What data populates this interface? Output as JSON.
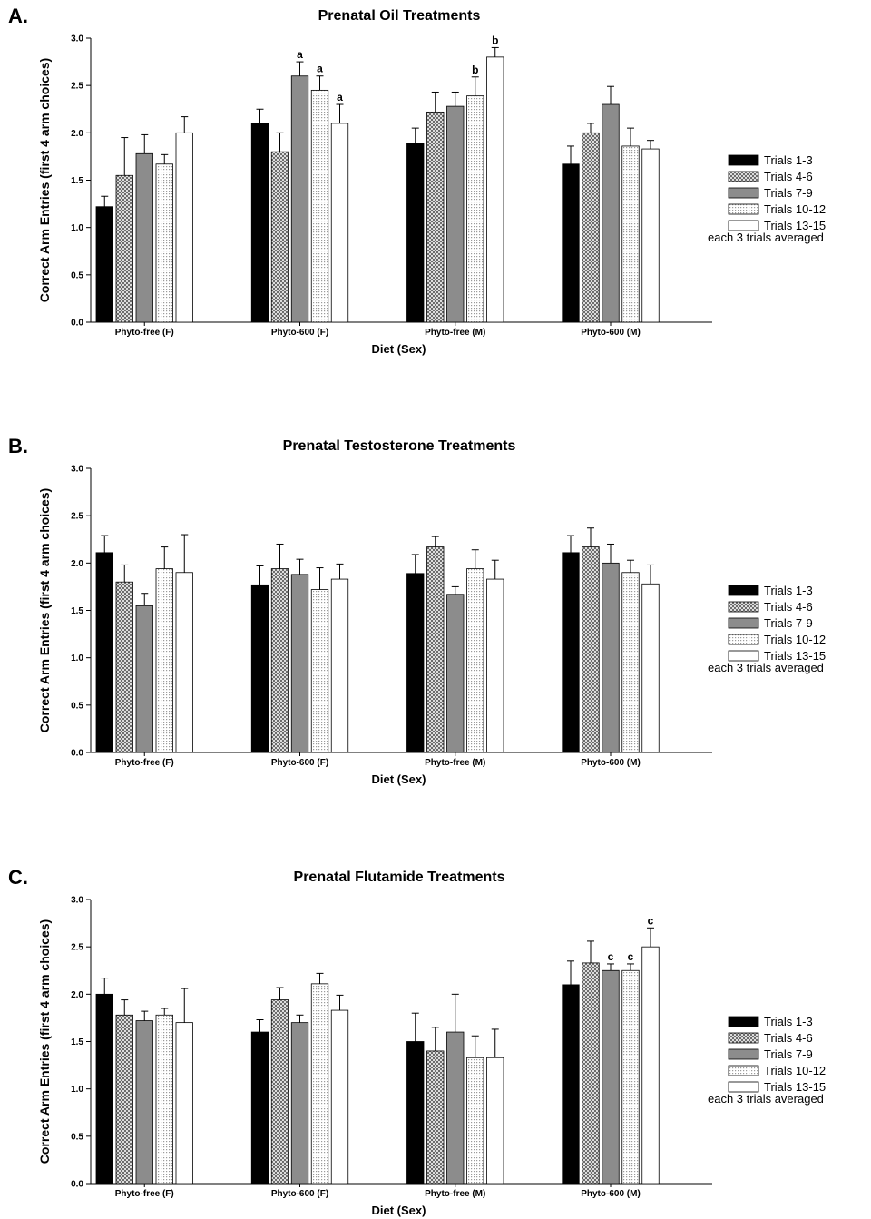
{
  "chart_data": [
    {
      "type": "bar",
      "panel_letter": "A.",
      "title": "Prenatal Oil Treatments",
      "xlabel": "Diet (Sex)",
      "ylabel": "Correct Arm Entries (first 4 arm choices)",
      "ylim": [
        0,
        3.0
      ],
      "yticks": [
        "0.0",
        "0.5",
        "1.0",
        "1.5",
        "2.0",
        "2.5",
        "3.0"
      ],
      "categories": [
        "Phyto-free (F)",
        "Phyto-600 (F)",
        "Phyto-free (M)",
        "Phyto-600 (M)"
      ],
      "grid": false,
      "legend_position": "right",
      "legend_note": "each 3 trials averaged",
      "series": [
        {
          "name": "Trials 1-3",
          "fill": "solid-black",
          "values": [
            1.22,
            2.1,
            1.89,
            1.67
          ],
          "errors": [
            0.11,
            0.15,
            0.16,
            0.19
          ],
          "annotations": [
            "",
            "",
            "",
            ""
          ]
        },
        {
          "name": "Trials 4-6",
          "fill": "crosshatch",
          "values": [
            1.55,
            1.8,
            2.22,
            2.0
          ],
          "errors": [
            0.4,
            0.2,
            0.21,
            0.1
          ],
          "annotations": [
            "",
            "",
            "",
            ""
          ]
        },
        {
          "name": "Trials 7-9",
          "fill": "solid-gray",
          "values": [
            1.78,
            2.6,
            2.28,
            2.3
          ],
          "errors": [
            0.2,
            0.15,
            0.15,
            0.19
          ],
          "annotations": [
            "",
            "a",
            "",
            ""
          ]
        },
        {
          "name": "Trials 10-12",
          "fill": "light-dots",
          "values": [
            1.67,
            2.45,
            2.39,
            1.86
          ],
          "errors": [
            0.1,
            0.15,
            0.2,
            0.19
          ],
          "annotations": [
            "",
            "a",
            "b",
            ""
          ]
        },
        {
          "name": "Trials 13-15",
          "fill": "white",
          "values": [
            2.0,
            2.1,
            2.8,
            1.83
          ],
          "errors": [
            0.17,
            0.2,
            0.1,
            0.09
          ],
          "annotations": [
            "",
            "a",
            "b",
            ""
          ]
        }
      ]
    },
    {
      "type": "bar",
      "panel_letter": "B.",
      "title": "Prenatal Testosterone Treatments",
      "xlabel": "Diet (Sex)",
      "ylabel": "Correct Arm Entries (first 4 arm choices)",
      "ylim": [
        0,
        3.0
      ],
      "yticks": [
        "0.0",
        "0.5",
        "1.0",
        "1.5",
        "2.0",
        "2.5",
        "3.0"
      ],
      "categories": [
        "Phyto-free (F)",
        "Phyto-600 (F)",
        "Phyto-free (M)",
        "Phyto-600 (M)"
      ],
      "grid": false,
      "legend_position": "right",
      "legend_note": "each 3 trials averaged",
      "series": [
        {
          "name": "Trials 1-3",
          "fill": "solid-black",
          "values": [
            2.11,
            1.77,
            1.89,
            2.11
          ],
          "errors": [
            0.18,
            0.2,
            0.2,
            0.18
          ],
          "annotations": [
            "",
            "",
            "",
            ""
          ]
        },
        {
          "name": "Trials 4-6",
          "fill": "crosshatch",
          "values": [
            1.8,
            1.94,
            2.17,
            2.17
          ],
          "errors": [
            0.18,
            0.26,
            0.11,
            0.2
          ],
          "annotations": [
            "",
            "",
            "",
            ""
          ]
        },
        {
          "name": "Trials 7-9",
          "fill": "solid-gray",
          "values": [
            1.55,
            1.88,
            1.67,
            2.0
          ],
          "errors": [
            0.13,
            0.16,
            0.08,
            0.2
          ],
          "annotations": [
            "",
            "",
            "",
            ""
          ]
        },
        {
          "name": "Trials 10-12",
          "fill": "light-dots",
          "values": [
            1.94,
            1.72,
            1.94,
            1.9
          ],
          "errors": [
            0.23,
            0.23,
            0.2,
            0.13
          ],
          "annotations": [
            "",
            "",
            "",
            ""
          ]
        },
        {
          "name": "Trials 13-15",
          "fill": "white",
          "values": [
            1.9,
            1.83,
            1.83,
            1.78
          ],
          "errors": [
            0.4,
            0.16,
            0.2,
            0.2
          ],
          "annotations": [
            "",
            "",
            "",
            ""
          ]
        }
      ]
    },
    {
      "type": "bar",
      "panel_letter": "C.",
      "title": "Prenatal Flutamide Treatments",
      "xlabel": "Diet (Sex)",
      "ylabel": "Correct Arm Entries (first 4 arm choices)",
      "ylim": [
        0,
        3.0
      ],
      "yticks": [
        "0.0",
        "0.5",
        "1.0",
        "1.5",
        "2.0",
        "2.5",
        "3.0"
      ],
      "categories": [
        "Phyto-free (F)",
        "Phyto-600 (F)",
        "Phyto-free (M)",
        "Phyto-600 (M)"
      ],
      "grid": false,
      "legend_position": "right",
      "legend_note": "each 3 trials averaged",
      "series": [
        {
          "name": "Trials 1-3",
          "fill": "solid-black",
          "values": [
            2.0,
            1.6,
            1.5,
            2.1
          ],
          "errors": [
            0.17,
            0.13,
            0.3,
            0.25
          ],
          "annotations": [
            "",
            "",
            "",
            ""
          ]
        },
        {
          "name": "Trials 4-6",
          "fill": "crosshatch",
          "values": [
            1.78,
            1.94,
            1.4,
            2.33
          ],
          "errors": [
            0.16,
            0.13,
            0.25,
            0.23
          ],
          "annotations": [
            "",
            "",
            "",
            ""
          ]
        },
        {
          "name": "Trials 7-9",
          "fill": "solid-gray",
          "values": [
            1.72,
            1.7,
            1.6,
            2.25
          ],
          "errors": [
            0.1,
            0.08,
            0.4,
            0.07
          ],
          "annotations": [
            "",
            "",
            "",
            "c"
          ]
        },
        {
          "name": "Trials 10-12",
          "fill": "light-dots",
          "values": [
            1.78,
            2.11,
            1.33,
            2.25
          ],
          "errors": [
            0.07,
            0.11,
            0.23,
            0.07
          ],
          "annotations": [
            "",
            "",
            "",
            "c"
          ]
        },
        {
          "name": "Trials 13-15",
          "fill": "white",
          "values": [
            1.7,
            1.83,
            1.33,
            2.5
          ],
          "errors": [
            0.36,
            0.16,
            0.3,
            0.2
          ],
          "annotations": [
            "",
            "",
            "",
            "c"
          ]
        }
      ]
    }
  ]
}
